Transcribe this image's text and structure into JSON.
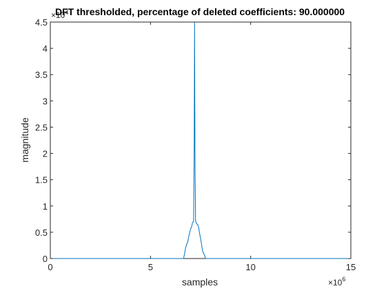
{
  "chart_data": {
    "type": "line",
    "title": "DFT thresholded, percentage of deleted coefficients: 90.000000",
    "xlabel": "samples",
    "ylabel": "magnitude",
    "xlim": [
      0,
      15000000
    ],
    "ylim": [
      0,
      45000
    ],
    "x_ticks": [
      0,
      5000000,
      10000000,
      15000000
    ],
    "x_tick_labels": [
      "0",
      "5",
      "10",
      "15"
    ],
    "x_exponent_label": "×10",
    "x_exponent_power": "6",
    "y_ticks": [
      0,
      5000,
      10000,
      15000,
      20000,
      25000,
      30000,
      35000,
      40000,
      45000
    ],
    "y_tick_labels": [
      "0",
      "0.5",
      "1",
      "1.5",
      "2",
      "2.5",
      "3",
      "3.5",
      "4",
      "4.5"
    ],
    "y_exponent_label": "×10",
    "y_exponent_power": "4",
    "grid": false,
    "line_color": "#0072BD",
    "series": [
      {
        "x": [
          0,
          6650000,
          6700000,
          6750000,
          6800000,
          6850000,
          6900000,
          6950000,
          7000000,
          7050000,
          7100000,
          7150000,
          7180000,
          7200000,
          7220000,
          7250000,
          7300000,
          7350000,
          7400000,
          7450000,
          7500000,
          7550000,
          7600000,
          7650000,
          7700000,
          7750000,
          15000000
        ],
        "y": [
          0,
          0,
          900,
          2000,
          2700,
          3000,
          4000,
          4800,
          5600,
          6000,
          6900,
          7000,
          20000,
          45000,
          20000,
          7200,
          6600,
          6500,
          6000,
          4800,
          3800,
          2700,
          1400,
          1000,
          600,
          0,
          0
        ]
      }
    ]
  }
}
